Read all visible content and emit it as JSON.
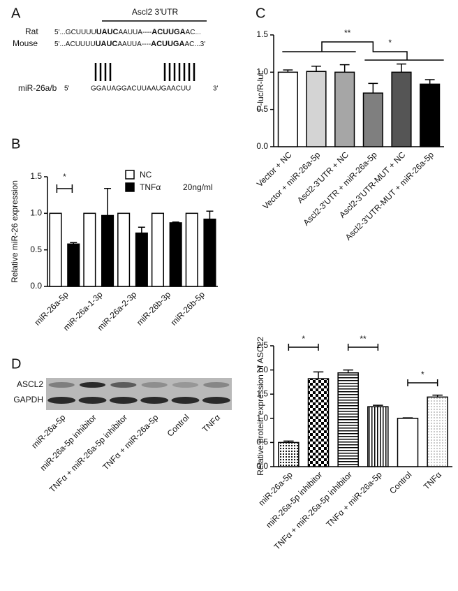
{
  "panel_labels": [
    "A",
    "B",
    "C",
    "D"
  ],
  "sequence": {
    "title": "Ascl2 3'UTR",
    "rows": [
      {
        "name": "Rat",
        "prefix": "5'...GCUUUU",
        "site1": "UAUC",
        "middle": "AAUUA----",
        "site2": "ACUUGA",
        "suffix": "AC..."
      },
      {
        "name": "Mouse",
        "prefix": "5'...ACUUUU",
        "site1": "UAUC",
        "middle": "AAUUA----",
        "site2": "ACUUGA",
        "suffix": "AC...3'"
      }
    ],
    "mirna": {
      "name": "miR-26a/b",
      "five": "5'",
      "seq": "GGAUAGGACUUAAUGAACUU",
      "three": "3'"
    }
  },
  "blot": {
    "rows": [
      "ASCL2",
      "GAPDH"
    ],
    "lanes": [
      "miR-26a-5p",
      "miR-26a-5p inhibitor",
      "TNFα + miR-26a-5p inhibitor",
      "TNFα + miR-26a-5p",
      "Control",
      "TNFα"
    ]
  },
  "chart_data": [
    {
      "type": "bar",
      "ylabel": "Relative miR-26 expression",
      "categories": [
        "miR-26a-5p",
        "miR-26a-1-3p",
        "miR-26a-2-3p",
        "miR-26b-3p",
        "miR-26b-5p"
      ],
      "series": [
        {
          "name": "NC",
          "color": "#ffffff",
          "values": [
            1,
            1,
            1,
            1,
            1
          ]
        },
        {
          "name": "TNFα",
          "color": "#000000",
          "values": [
            0.58,
            0.97,
            0.73,
            0.87,
            0.92
          ],
          "errors": [
            0.02,
            0.37,
            0.08,
            0.01,
            0.11
          ]
        }
      ],
      "legend_note": "20ng/ml",
      "ylim": [
        0,
        1.5
      ],
      "yticks": [
        {
          "value": 0,
          "label": "0.0"
        },
        0.5,
        {
          "value": 1,
          "label": "1.0"
        },
        1.5
      ],
      "annotations": [
        "*"
      ]
    },
    {
      "type": "bar",
      "ylabel": "F-luc/R-luc",
      "categories": [
        "Vector + NC",
        "Vector + miR-26a-5p",
        "Ascl2-3'UTR + NC",
        "Ascl2-3'UTR + miR-26a-5p",
        "Ascl2-3'UTR-MUT + NC",
        "Ascl2-3'UTR-MUT + miR-26a-5p"
      ],
      "values": [
        1.0,
        1.01,
        1.0,
        0.72,
        1.0,
        0.84
      ],
      "errors": [
        0.03,
        0.07,
        0.1,
        0.13,
        0.11,
        0.06
      ],
      "colors": [
        "#ffffff",
        "#d4d4d4",
        "#a6a6a6",
        "#7f7f7f",
        "#555555",
        "#000000"
      ],
      "ylim": [
        0,
        1.5
      ],
      "yticks": [
        {
          "value": 0,
          "label": "0.0"
        },
        0.5,
        {
          "value": 1,
          "label": "1.0"
        },
        1.5
      ],
      "annotations": [
        "**",
        "*"
      ]
    },
    {
      "type": "bar",
      "ylabel": "Relative protein expression of ASCL2",
      "categories": [
        "miR-26a-5p",
        "miR-26a-5p inhibitor",
        "TNFα + miR-26a-5p inhibitor",
        "TNFα + miR-26a-5p",
        "Control",
        "TNFα"
      ],
      "values": [
        0.5,
        1.82,
        1.94,
        1.24,
        1.0,
        1.44
      ],
      "errors": [
        0.03,
        0.14,
        0.06,
        0.03,
        0.01,
        0.04
      ],
      "patterns": [
        "dots",
        "checker",
        "hlines",
        "vlines",
        "none",
        "fine-dots"
      ],
      "ylim": [
        0,
        2.5
      ],
      "yticks": [
        {
          "value": 0,
          "label": "0.0"
        },
        0.5,
        {
          "value": 1,
          "label": "1.0"
        },
        1.5,
        {
          "value": 2,
          "label": "2.0"
        },
        2.5
      ],
      "annotations": [
        "*",
        "**",
        "*"
      ]
    }
  ]
}
